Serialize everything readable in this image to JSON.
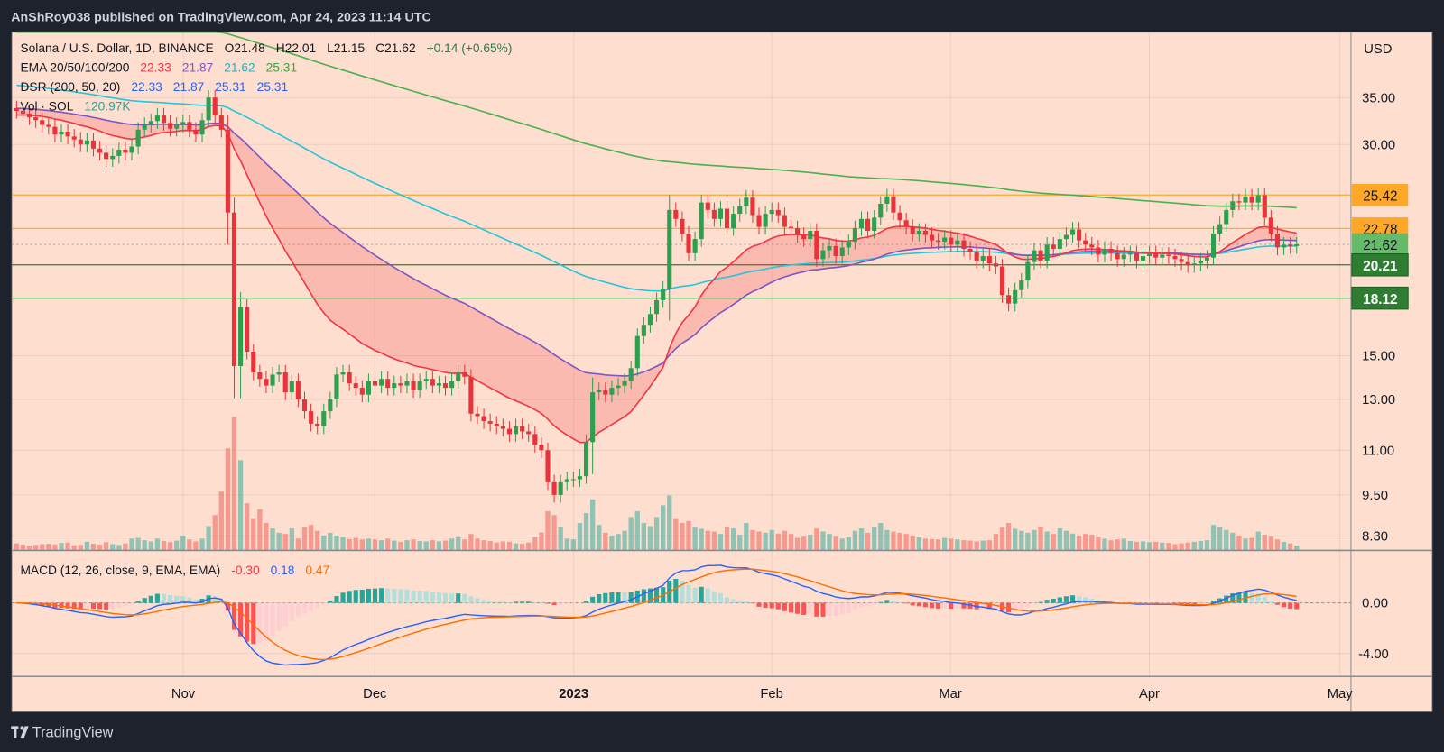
{
  "header": {
    "title": "AnShRoy038 published on TradingView.com, Apr 24, 2023 11:14 UTC"
  },
  "footer": {
    "brand": "TradingView"
  },
  "legend": {
    "symbol": "Solana / U.S. Dollar, 1D, BINANCE",
    "open": "O21.48",
    "high": "H22.01",
    "low": "L21.15",
    "close": "C21.62",
    "change": "+0.14 (+0.65%)",
    "ema_label": "EMA 20/50/100/200",
    "ema_values": [
      "22.33",
      "21.87",
      "21.62",
      "25.31"
    ],
    "dsr_label": "DSR (200, 50, 20)",
    "dsr_values": [
      "22.33",
      "21.87",
      "25.31",
      "25.31"
    ],
    "vol_label": "Vol · SOL",
    "vol_value": "120.97K",
    "macd_label": "MACD (12, 26, close, 9, EMA, EMA)",
    "macd_values": [
      "-0.30",
      "0.18",
      "0.47"
    ]
  },
  "colors": {
    "background": "#fedfcf",
    "up": "#2e9e4f",
    "down": "#e8333b",
    "ema20": "#f23645",
    "ema50": "#7e57c2",
    "ema100": "#26c6da",
    "ema200": "#4caf50",
    "dsr": "#2962ff",
    "vol": "#26a69a",
    "macd": "#2962ff",
    "signal": "#ff6d00",
    "orange_line": "#ffa726",
    "green_line": "#2e7d32"
  },
  "chart_data": {
    "type": "candlestick",
    "title": "Solana / U.S. Dollar, 1D, BINANCE",
    "start_date": "2022-10-06",
    "end_date": "2023-04-24",
    "scale": "log",
    "ylim": [
      8.0,
      45.0
    ],
    "currency": "USD",
    "close": [
      33.5,
      33.2,
      32.8,
      32.5,
      32.0,
      31.8,
      31.0,
      31.3,
      30.8,
      30.5,
      30.0,
      30.4,
      29.6,
      29.2,
      28.6,
      28.9,
      29.5,
      29.2,
      29.8,
      31.5,
      32.0,
      32.4,
      33.0,
      32.2,
      31.6,
      32.0,
      32.3,
      31.5,
      31.0,
      32.5,
      35.0,
      33.0,
      31.5,
      24.0,
      14.5,
      17.6,
      15.2,
      14.2,
      13.9,
      13.6,
      14.1,
      14.2,
      13.3,
      13.8,
      13.0,
      12.5,
      12.0,
      11.9,
      12.5,
      13.0,
      14.1,
      14.2,
      13.7,
      13.5,
      13.2,
      13.8,
      13.6,
      13.9,
      13.5,
      13.7,
      13.6,
      13.8,
      13.4,
      13.8,
      13.9,
      13.6,
      13.7,
      13.5,
      13.8,
      14.2,
      14.0,
      12.4,
      12.3,
      12.1,
      12.0,
      11.9,
      11.8,
      11.6,
      11.9,
      11.7,
      11.6,
      11.2,
      11.0,
      9.9,
      9.5,
      9.9,
      10.0,
      10.0,
      10.1,
      11.3,
      13.3,
      13.4,
      13.2,
      13.5,
      13.6,
      13.8,
      14.4,
      16.0,
      16.6,
      17.2,
      18.0,
      18.7,
      24.2,
      23.5,
      22.4,
      21.0,
      22.0,
      24.8,
      24.2,
      23.5,
      24.3,
      22.8,
      23.9,
      24.5,
      25.2,
      23.8,
      22.9,
      23.9,
      24.2,
      23.8,
      22.9,
      22.8,
      22.3,
      22.0,
      22.6,
      20.6,
      21.2,
      21.5,
      20.8,
      21.4,
      21.8,
      22.8,
      23.5,
      22.6,
      23.6,
      24.7,
      25.3,
      24.0,
      23.4,
      22.9,
      22.4,
      22.6,
      22.3,
      21.9,
      21.8,
      22.1,
      21.6,
      21.9,
      21.3,
      21.1,
      20.5,
      20.8,
      20.3,
      20.1,
      18.3,
      17.8,
      18.6,
      19.2,
      20.4,
      21.2,
      20.5,
      21.6,
      21.3,
      22.0,
      22.3,
      22.7,
      21.9,
      21.6,
      21.4,
      20.9,
      21.3,
      21.0,
      20.6,
      20.9,
      21.0,
      20.5,
      20.8,
      21.0,
      20.7,
      20.9,
      20.8,
      20.6,
      20.4,
      20.2,
      20.3,
      20.5,
      20.7,
      22.4,
      23.1,
      24.2,
      24.9,
      24.8,
      25.3,
      24.8,
      25.4,
      23.6,
      22.4,
      21.4,
      21.6,
      21.5,
      21.62
    ],
    "volume_k": [
      180,
      150,
      120,
      140,
      160,
      170,
      150,
      190,
      200,
      130,
      140,
      220,
      170,
      150,
      210,
      160,
      140,
      180,
      300,
      320,
      260,
      230,
      300,
      240,
      210,
      250,
      380,
      280,
      230,
      300,
      620,
      900,
      1500,
      2600,
      3400,
      2300,
      1200,
      800,
      1050,
      700,
      560,
      450,
      420,
      560,
      300,
      600,
      650,
      500,
      380,
      450,
      380,
      330,
      290,
      320,
      280,
      300,
      280,
      260,
      300,
      250,
      220,
      260,
      280,
      240,
      230,
      260,
      230,
      250,
      300,
      340,
      280,
      420,
      300,
      260,
      240,
      200,
      230,
      220,
      180,
      170,
      200,
      330,
      460,
      1000,
      900,
      600,
      300,
      280,
      700,
      950,
      1300,
      650,
      450,
      380,
      420,
      500,
      850,
      1000,
      700,
      620,
      850,
      1150,
      1400,
      800,
      700,
      750,
      600,
      550,
      500,
      480,
      420,
      600,
      560,
      400,
      700,
      520,
      480,
      450,
      520,
      430,
      500,
      420,
      320,
      350,
      400,
      560,
      480,
      420,
      350,
      300,
      330,
      500,
      560,
      450,
      600,
      700,
      520,
      480,
      450,
      420,
      380,
      330,
      300,
      290,
      280,
      320,
      300,
      280,
      260,
      250,
      230,
      250,
      260,
      420,
      580,
      700,
      550,
      500,
      450,
      520,
      600,
      480,
      420,
      560,
      500,
      430,
      380,
      420,
      400,
      330,
      300,
      260,
      280,
      300,
      240,
      220,
      230,
      210,
      220,
      200,
      190,
      160,
      180,
      200,
      220,
      240,
      260,
      650,
      600,
      520,
      450,
      380,
      300,
      320,
      480,
      400,
      350,
      280,
      220,
      180,
      120.97
    ],
    "ema_initial": {
      "ema20": 33.0,
      "ema50": 33.8,
      "ema100": 36.5,
      "ema200": 48.0
    },
    "horizontal_levels": [
      {
        "price": 25.42,
        "label": "25.42",
        "kind": "orange"
      },
      {
        "price": 22.78,
        "label": "22.78",
        "kind": "orange"
      },
      {
        "price": 21.62,
        "label": "21.62",
        "kind": "last"
      },
      {
        "price": 20.21,
        "label": "20.21",
        "kind": "green"
      },
      {
        "price": 18.12,
        "label": "18.12",
        "kind": "green"
      }
    ],
    "price_axis": {
      "title": "USD",
      "ticks": [
        "35.00",
        "30.00",
        "15.00",
        "13.00",
        "11.00",
        "9.50",
        "8.30"
      ]
    },
    "macd_axis": {
      "ticks": [
        "0.00",
        "-4.00"
      ]
    },
    "time_axis": {
      "ticks": [
        "Nov",
        "Dec",
        "2023",
        "Feb",
        "Mar",
        "Apr",
        "May"
      ],
      "tick_dates": [
        "2022-11-01",
        "2022-12-01",
        "2023-01-01",
        "2023-02-01",
        "2023-03-01",
        "2023-04-01",
        "2023-05-01"
      ]
    }
  }
}
